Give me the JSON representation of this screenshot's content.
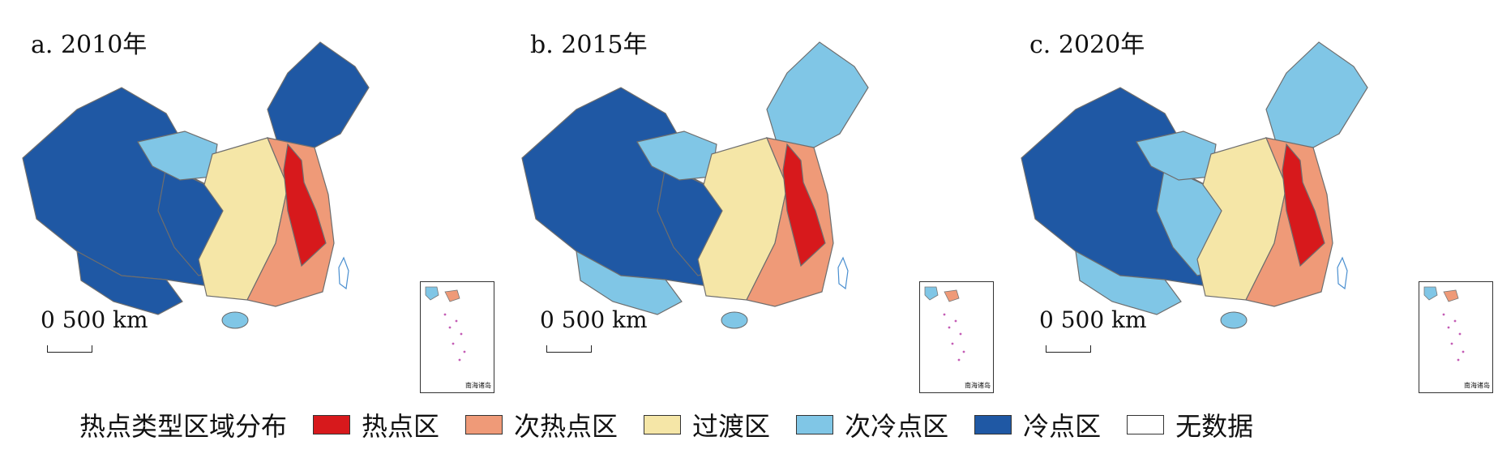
{
  "panels": [
    {
      "title": "a. 2010年",
      "scale": "0 500 km",
      "inset_label": "南海诸岛",
      "palette": [
        "#1f58a4",
        "#1f58a4",
        "#1f58a4",
        "#80c6e6",
        "#1f58a4",
        "#f5e6a7",
        "#ef9a78",
        "#d7191c"
      ]
    },
    {
      "title": "b. 2015年",
      "scale": "0 500 km",
      "inset_label": "南海诸岛",
      "palette": [
        "#1f58a4",
        "#80c6e6",
        "#1f58a4",
        "#80c6e6",
        "#80c6e6",
        "#f5e6a7",
        "#ef9a78",
        "#d7191c"
      ]
    },
    {
      "title": "c. 2020年",
      "scale": "0 500 km",
      "inset_label": "南海诸岛",
      "palette": [
        "#1f58a4",
        "#80c6e6",
        "#80c6e6",
        "#80c6e6",
        "#80c6e6",
        "#f5e6a7",
        "#ef9a78",
        "#d7191c"
      ]
    }
  ],
  "legend": {
    "title": "热点类型区域分布",
    "items": [
      {
        "label": "热点区",
        "color": "#d7191c"
      },
      {
        "label": "次热点区",
        "color": "#ef9a78"
      },
      {
        "label": "过渡区",
        "color": "#f5e6a7"
      },
      {
        "label": "次冷点区",
        "color": "#80c6e6"
      },
      {
        "label": "冷点区",
        "color": "#1f58a4"
      },
      {
        "label": "无数据",
        "color": "#ffffff"
      }
    ]
  }
}
